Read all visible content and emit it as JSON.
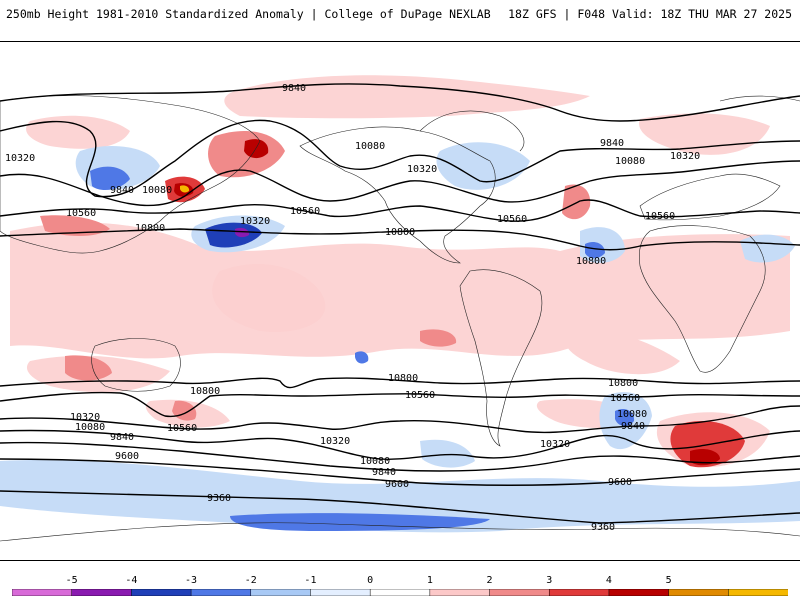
{
  "header": {
    "title_left": "250mb Height 1981-2010 Standardized Anomaly | College of DuPage NEXLAB",
    "title_right": "18Z GFS | F048 Valid: 18Z THU MAR 27 2025"
  },
  "contour_labels": {
    "l1": "9840",
    "l2": "10320",
    "l3": "9840",
    "l4": "10080",
    "l5": "10560",
    "l6": "10800",
    "l7": "10320",
    "l8": "10080",
    "l9": "10560",
    "l10": "10320",
    "l11": "10800",
    "l12": "9840",
    "l13": "10080",
    "l14": "10320",
    "l15": "10560",
    "l16": "10560",
    "l17": "10800",
    "l18": "10800",
    "l19": "10800",
    "l20": "10560",
    "l21": "10800",
    "l22": "10560",
    "l23": "10320",
    "l24": "10080",
    "l25": "9840",
    "l26": "9600",
    "l27": "10560",
    "l28": "10320",
    "l29": "10080",
    "l30": "9840",
    "l31": "9600",
    "l32": "9360",
    "l33": "10080",
    "l34": "9840",
    "l35": "10320",
    "l36": "9600",
    "l37": "9360"
  },
  "colorbar": {
    "ticks": [
      "-5",
      "-4",
      "-3",
      "-2",
      "-1",
      "0",
      "1",
      "2",
      "3",
      "4",
      "5"
    ],
    "colors": [
      "#d86ad8",
      "#8a1ab0",
      "#1f3fb8",
      "#4f78e6",
      "#a8c9f5",
      "#e4efff",
      "#ffffff",
      "#fcc8c8",
      "#f08a8a",
      "#e03a3a",
      "#b80000",
      "#e08a00",
      "#f5b800"
    ]
  }
}
